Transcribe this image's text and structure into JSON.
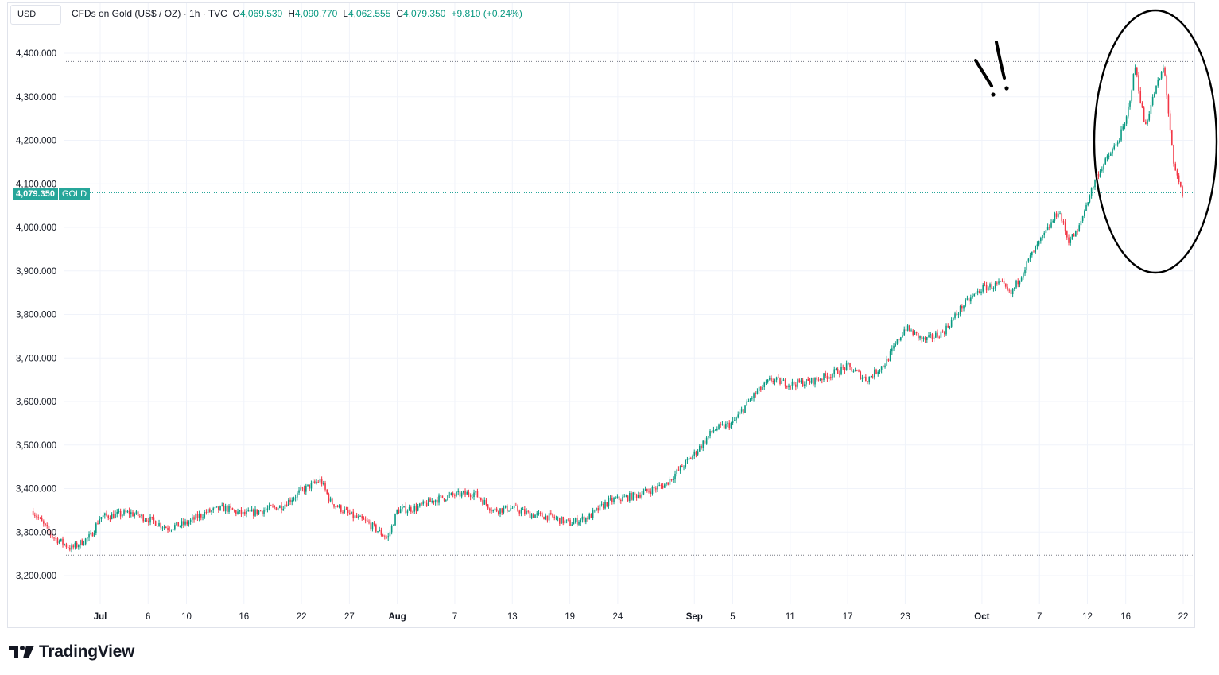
{
  "header": {
    "currency": "USD",
    "symbol_title": "CFDs on Gold (US$ / OZ) · 1h · TVC",
    "open_label": "O",
    "open_value": "4,069.530",
    "high_label": "H",
    "high_value": "4,090.770",
    "low_label": "L",
    "low_value": "4,062.555",
    "close_label": "C",
    "close_value": "4,079.350",
    "change": "+9.810 (+0.24%)"
  },
  "price_tag": {
    "value": "4,079.350",
    "symbol": "GOLD"
  },
  "brand": "TradingView",
  "annotation": {
    "text": "!!",
    "circle_target": "recent peak and pullback"
  },
  "colors": {
    "up": "#089981",
    "down": "#f23645",
    "last_price": "#26a69a",
    "grid": "#f0f3fa"
  },
  "chart_data": {
    "type": "candlestick",
    "interval": "1h",
    "y_axis": {
      "labels": [
        "4,400.000",
        "4,300.000",
        "4,200.000",
        "4,100.000",
        "4,000.000",
        "3,900.000",
        "3,800.000",
        "3,700.000",
        "3,600.000",
        "3,500.000",
        "3,400.000",
        "3,300.000",
        "3,200.000"
      ],
      "values": [
        4400,
        4300,
        4200,
        4100,
        4000,
        3900,
        3800,
        3700,
        3600,
        3500,
        3400,
        3300,
        3200
      ],
      "ylim": [
        3165,
        4460
      ]
    },
    "x_axis": {
      "labels": [
        "Jul",
        "6",
        "10",
        "16",
        "22",
        "27",
        "Aug",
        "7",
        "13",
        "19",
        "24",
        "Sep",
        "5",
        "11",
        "17",
        "23",
        "Oct",
        "7",
        "12",
        "16",
        "22"
      ],
      "month_labels": [
        "Jul",
        "Aug",
        "Sep",
        "Oct"
      ],
      "dates": [
        "2025-07-01",
        "2025-07-06",
        "2025-07-10",
        "2025-07-16",
        "2025-07-22",
        "2025-07-27",
        "2025-08-01",
        "2025-08-07",
        "2025-08-13",
        "2025-08-19",
        "2025-08-24",
        "2025-09-01",
        "2025-09-05",
        "2025-09-11",
        "2025-09-17",
        "2025-09-23",
        "2025-10-01",
        "2025-10-07",
        "2025-10-12",
        "2025-10-16",
        "2025-10-22"
      ]
    },
    "reference_lines": {
      "high": 4381,
      "low": 3247,
      "last": 4079.35
    },
    "trend_points": [
      {
        "date": "2025-06-24",
        "close": 3348
      },
      {
        "date": "2025-06-26",
        "close": 3290
      },
      {
        "date": "2025-06-28",
        "close": 3262
      },
      {
        "date": "2025-06-30",
        "close": 3290
      },
      {
        "date": "2025-07-01",
        "close": 3335
      },
      {
        "date": "2025-07-03",
        "close": 3340
      },
      {
        "date": "2025-07-04",
        "close": 3345
      },
      {
        "date": "2025-07-06",
        "close": 3330
      },
      {
        "date": "2025-07-08",
        "close": 3310
      },
      {
        "date": "2025-07-10",
        "close": 3320
      },
      {
        "date": "2025-07-12",
        "close": 3345
      },
      {
        "date": "2025-07-14",
        "close": 3355
      },
      {
        "date": "2025-07-16",
        "close": 3340
      },
      {
        "date": "2025-07-18",
        "close": 3350
      },
      {
        "date": "2025-07-20",
        "close": 3360
      },
      {
        "date": "2025-07-22",
        "close": 3395
      },
      {
        "date": "2025-07-24",
        "close": 3420
      },
      {
        "date": "2025-07-25",
        "close": 3370
      },
      {
        "date": "2025-07-27",
        "close": 3340
      },
      {
        "date": "2025-07-29",
        "close": 3320
      },
      {
        "date": "2025-07-31",
        "close": 3285
      },
      {
        "date": "2025-08-01",
        "close": 3350
      },
      {
        "date": "2025-08-03",
        "close": 3355
      },
      {
        "date": "2025-08-05",
        "close": 3375
      },
      {
        "date": "2025-08-07",
        "close": 3385
      },
      {
        "date": "2025-08-09",
        "close": 3390
      },
      {
        "date": "2025-08-11",
        "close": 3350
      },
      {
        "date": "2025-08-13",
        "close": 3355
      },
      {
        "date": "2025-08-15",
        "close": 3340
      },
      {
        "date": "2025-08-17",
        "close": 3335
      },
      {
        "date": "2025-08-19",
        "close": 3320
      },
      {
        "date": "2025-08-21",
        "close": 3335
      },
      {
        "date": "2025-08-23",
        "close": 3370
      },
      {
        "date": "2025-08-26",
        "close": 3385
      },
      {
        "date": "2025-08-29",
        "close": 3410
      },
      {
        "date": "2025-09-01",
        "close": 3480
      },
      {
        "date": "2025-09-03",
        "close": 3535
      },
      {
        "date": "2025-09-05",
        "close": 3550
      },
      {
        "date": "2025-09-07",
        "close": 3610
      },
      {
        "date": "2025-09-09",
        "close": 3650
      },
      {
        "date": "2025-09-11",
        "close": 3640
      },
      {
        "date": "2025-09-13",
        "close": 3645
      },
      {
        "date": "2025-09-15",
        "close": 3660
      },
      {
        "date": "2025-09-17",
        "close": 3680
      },
      {
        "date": "2025-09-19",
        "close": 3650
      },
      {
        "date": "2025-09-21",
        "close": 3690
      },
      {
        "date": "2025-09-23",
        "close": 3770
      },
      {
        "date": "2025-09-25",
        "close": 3740
      },
      {
        "date": "2025-09-27",
        "close": 3760
      },
      {
        "date": "2025-09-29",
        "close": 3820
      },
      {
        "date": "2025-10-01",
        "close": 3860
      },
      {
        "date": "2025-10-03",
        "close": 3870
      },
      {
        "date": "2025-10-04",
        "close": 3845
      },
      {
        "date": "2025-10-06",
        "close": 3930
      },
      {
        "date": "2025-10-08",
        "close": 4000
      },
      {
        "date": "2025-10-09",
        "close": 4040
      },
      {
        "date": "2025-10-10",
        "close": 3970
      },
      {
        "date": "2025-10-11",
        "close": 3990
      },
      {
        "date": "2025-10-12",
        "close": 4060
      },
      {
        "date": "2025-10-13",
        "close": 4120
      },
      {
        "date": "2025-10-15",
        "close": 4190
      },
      {
        "date": "2025-10-16",
        "close": 4240
      },
      {
        "date": "2025-10-17",
        "close": 4370
      },
      {
        "date": "2025-10-18",
        "close": 4230
      },
      {
        "date": "2025-10-19",
        "close": 4310
      },
      {
        "date": "2025-10-20",
        "close": 4370
      },
      {
        "date": "2025-10-21",
        "close": 4140
      },
      {
        "date": "2025-10-22",
        "close": 4070
      }
    ]
  }
}
